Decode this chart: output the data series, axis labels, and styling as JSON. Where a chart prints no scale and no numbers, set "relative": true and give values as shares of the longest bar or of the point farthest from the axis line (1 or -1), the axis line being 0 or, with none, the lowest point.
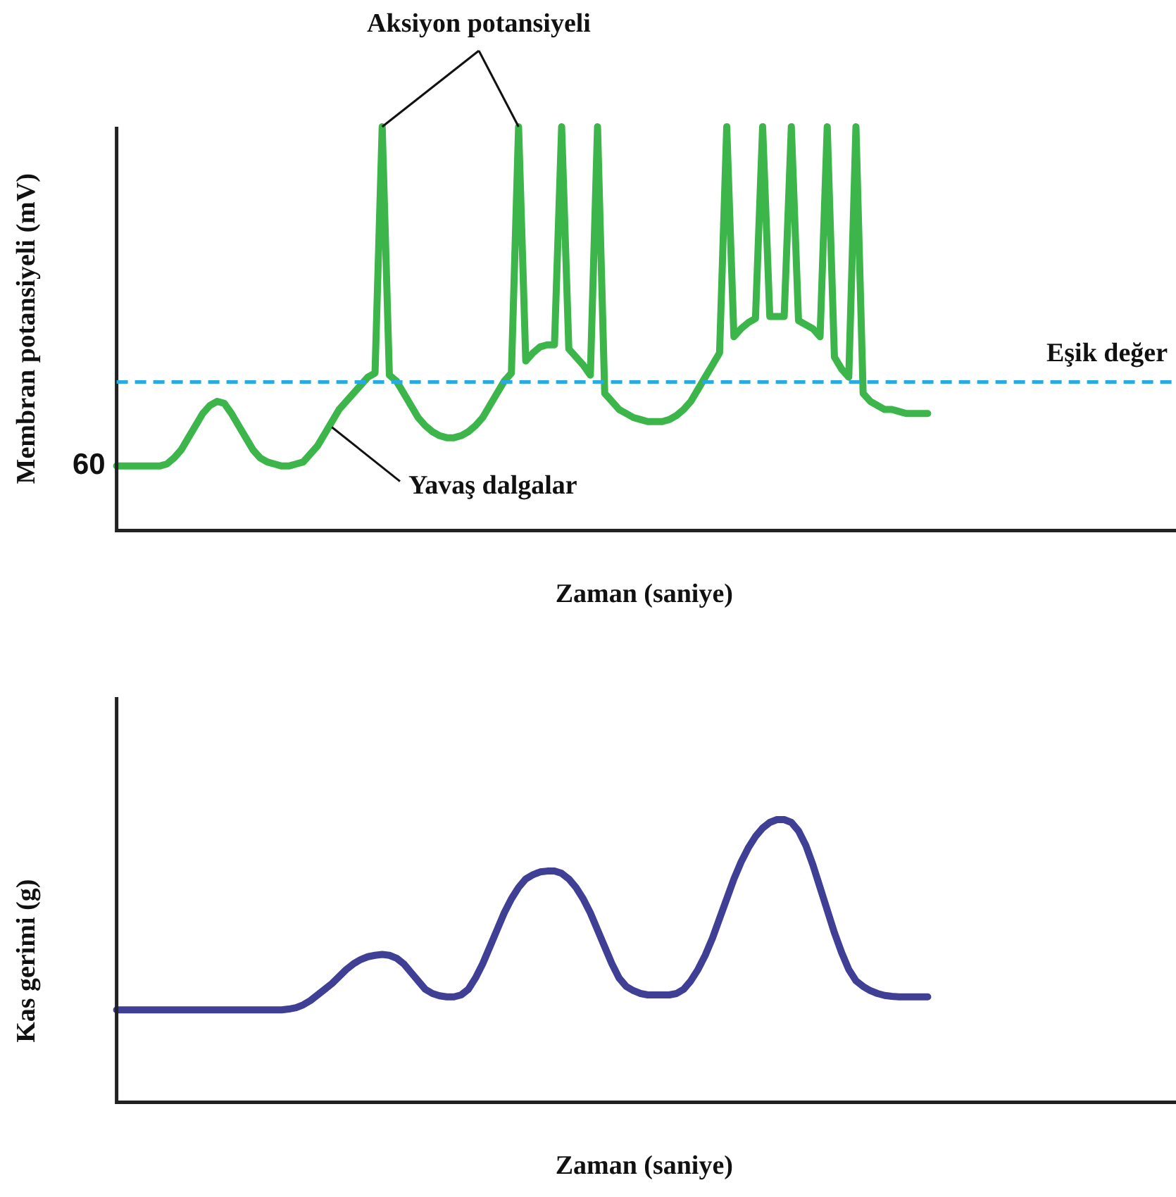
{
  "chart_data": [
    {
      "type": "line",
      "relative": true,
      "ylabel": "Membran potansiyeli (mV)",
      "xlabel": "Zaman (saniye)",
      "grid": false,
      "legend": false,
      "categories": [
        null,
        null,
        null,
        null,
        null,
        null,
        null,
        null,
        null,
        null,
        null,
        null,
        null,
        null,
        null,
        null,
        null,
        null,
        null,
        null,
        null,
        null,
        null,
        null,
        null,
        null,
        null,
        null,
        null,
        null,
        null,
        null,
        null,
        null,
        null,
        null,
        null,
        null,
        null,
        null,
        null,
        null,
        null,
        null,
        null,
        null,
        null,
        null,
        null,
        null,
        null,
        null,
        null,
        null,
        null,
        null,
        null,
        null,
        null,
        null,
        null,
        null,
        null,
        null,
        null,
        null,
        null,
        null,
        null,
        null,
        null,
        null,
        null,
        null,
        null,
        null,
        null,
        null,
        null,
        null,
        null,
        null,
        null,
        null,
        null,
        null,
        null,
        null,
        null,
        null,
        null,
        null,
        null,
        null,
        null,
        null,
        null,
        null,
        null,
        null,
        null,
        null,
        null,
        null,
        null,
        null,
        null,
        null,
        null,
        null,
        null,
        null,
        null,
        null,
        null,
        null,
        null,
        null,
        null,
        null,
        null,
        null,
        null,
        null,
        null,
        null,
        null,
        null,
        null,
        null,
        null,
        null,
        null,
        null,
        null,
        null,
        null,
        null,
        null,
        null,
        null,
        null,
        null,
        null,
        null,
        null,
        null,
        null
      ],
      "series": [
        {
          "color": "#3cb54a",
          "values": [
            0.16,
            0.16,
            0.16,
            0.16,
            0.16,
            0.16,
            0.16,
            0.165,
            0.18,
            0.2,
            0.23,
            0.26,
            0.29,
            0.31,
            0.32,
            0.315,
            0.29,
            0.26,
            0.23,
            0.2,
            0.18,
            0.17,
            0.165,
            0.16,
            0.16,
            0.165,
            0.17,
            0.19,
            0.21,
            0.24,
            0.27,
            0.3,
            0.32,
            0.34,
            0.36,
            0.38,
            0.39,
            1,
            0.385,
            0.37,
            0.34,
            0.31,
            0.28,
            0.26,
            0.245,
            0.235,
            0.23,
            0.23,
            0.235,
            0.245,
            0.26,
            0.28,
            0.31,
            0.34,
            0.37,
            0.39,
            1,
            0.42,
            0.44,
            0.455,
            0.46,
            0.46,
            1,
            0.45,
            0.43,
            0.41,
            0.385,
            1,
            0.34,
            0.32,
            0.3,
            0.29,
            0.28,
            0.275,
            0.27,
            0.27,
            0.27,
            0.275,
            0.285,
            0.3,
            0.32,
            0.35,
            0.38,
            0.41,
            0.44,
            1,
            0.48,
            0.5,
            0.515,
            0.525,
            1,
            0.53,
            0.53,
            0.53,
            1,
            0.52,
            0.51,
            0.5,
            0.48,
            1,
            0.43,
            0.4,
            0.38,
            1,
            0.34,
            0.32,
            0.31,
            0.3,
            0.3,
            0.295,
            0.29,
            0.29,
            0.29,
            0.29,
            null,
            null,
            null,
            null,
            null,
            null,
            null,
            null,
            null,
            null,
            null,
            null,
            null,
            null,
            null,
            null,
            null,
            null,
            null,
            null,
            null,
            null,
            null,
            null,
            null,
            null,
            null,
            null,
            null,
            null,
            null,
            null,
            null,
            null
          ]
        }
      ],
      "ref_lines": [
        {
          "axis": "y",
          "value": 0.368,
          "label": "Eşik değer",
          "color": "#29abe2",
          "line_style": "dashed"
        }
      ],
      "annotations": [
        "Aksiyon potansiyeli",
        "Yavaş dalgalar",
        "60"
      ]
    },
    {
      "type": "line",
      "relative": true,
      "ylabel": "Kas gerimi (g)",
      "xlabel": "Zaman (saniye)",
      "grid": false,
      "legend": false,
      "categories": [
        null,
        null,
        null,
        null,
        null,
        null,
        null,
        null,
        null,
        null,
        null,
        null,
        null,
        null,
        null,
        null,
        null,
        null,
        null,
        null,
        null,
        null,
        null,
        null,
        null,
        null,
        null,
        null,
        null,
        null,
        null,
        null,
        null,
        null,
        null,
        null,
        null,
        null,
        null,
        null,
        null,
        null,
        null,
        null,
        null,
        null,
        null,
        null,
        null,
        null,
        null,
        null,
        null,
        null,
        null,
        null,
        null,
        null,
        null,
        null,
        null,
        null,
        null,
        null,
        null,
        null,
        null,
        null,
        null,
        null,
        null,
        null,
        null,
        null,
        null,
        null,
        null,
        null,
        null,
        null,
        null,
        null,
        null,
        null,
        null,
        null,
        null,
        null,
        null,
        null,
        null,
        null,
        null,
        null,
        null,
        null,
        null,
        null,
        null,
        null,
        null,
        null,
        null,
        null,
        null,
        null,
        null,
        null,
        null,
        null,
        null,
        null,
        null,
        null,
        null,
        null,
        null,
        null,
        null,
        null,
        null,
        null,
        null,
        null,
        null,
        null,
        null,
        null,
        null,
        null,
        null,
        null,
        null,
        null,
        null,
        null,
        null,
        null,
        null,
        null,
        null,
        null,
        null,
        null,
        null,
        null,
        null,
        null
      ],
      "series": [
        {
          "color": "#3f3f96",
          "values": [
            0.327,
            0.327,
            0.327,
            0.327,
            0.327,
            0.327,
            0.327,
            0.327,
            0.327,
            0.327,
            0.327,
            0.327,
            0.327,
            0.327,
            0.327,
            0.327,
            0.327,
            0.327,
            0.327,
            0.327,
            0.327,
            0.327,
            0.327,
            0.327,
            0.33,
            0.335,
            0.345,
            0.36,
            0.38,
            0.4,
            0.42,
            0.445,
            0.47,
            0.49,
            0.505,
            0.515,
            0.52,
            0.523,
            0.52,
            0.51,
            0.49,
            0.46,
            0.43,
            0.4,
            0.385,
            0.377,
            0.373,
            0.373,
            0.38,
            0.4,
            0.44,
            0.49,
            0.55,
            0.61,
            0.67,
            0.72,
            0.76,
            0.79,
            0.805,
            0.815,
            0.818,
            0.818,
            0.81,
            0.79,
            0.76,
            0.72,
            0.67,
            0.61,
            0.55,
            0.49,
            0.44,
            0.41,
            0.395,
            0.385,
            0.38,
            0.38,
            0.38,
            0.38,
            0.385,
            0.4,
            0.43,
            0.47,
            0.52,
            0.58,
            0.65,
            0.72,
            0.79,
            0.85,
            0.9,
            0.94,
            0.97,
            0.99,
            1,
            1,
            0.99,
            0.96,
            0.91,
            0.84,
            0.76,
            0.68,
            0.6,
            0.53,
            0.47,
            0.43,
            0.41,
            0.395,
            0.385,
            0.378,
            0.375,
            0.373,
            0.373,
            0.373,
            0.373,
            0.373,
            null,
            null,
            null,
            null,
            null,
            null,
            null,
            null,
            null,
            null,
            null,
            null,
            null,
            null,
            null,
            null,
            null,
            null,
            null,
            null,
            null,
            null,
            null,
            null,
            null,
            null,
            null,
            null,
            null,
            null,
            null,
            null,
            null,
            null
          ]
        }
      ]
    }
  ]
}
